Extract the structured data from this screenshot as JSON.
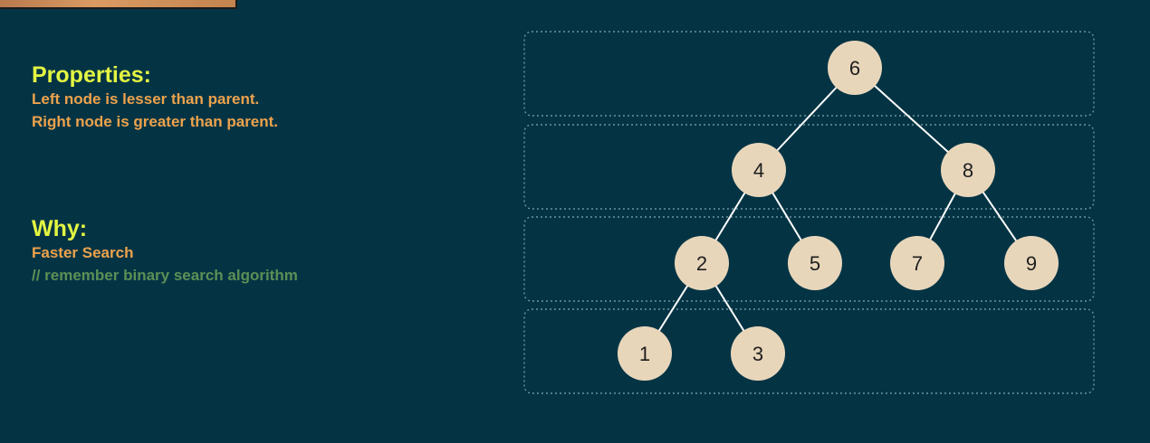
{
  "properties": {
    "heading": "Properties:",
    "lines": [
      "Left node is lesser than parent.",
      "Right node is greater than parent."
    ]
  },
  "why": {
    "heading": "Why:",
    "reason": "Faster Search",
    "comment": "// remember binary search algorithm"
  },
  "tree": {
    "root": "6",
    "nodes": [
      {
        "id": "n6",
        "label": "6",
        "level": 0
      },
      {
        "id": "n4",
        "label": "4",
        "level": 1
      },
      {
        "id": "n8",
        "label": "8",
        "level": 1
      },
      {
        "id": "n2",
        "label": "2",
        "level": 2
      },
      {
        "id": "n5",
        "label": "5",
        "level": 2
      },
      {
        "id": "n7",
        "label": "7",
        "level": 2
      },
      {
        "id": "n9",
        "label": "9",
        "level": 2
      },
      {
        "id": "n1",
        "label": "1",
        "level": 3
      },
      {
        "id": "n3",
        "label": "3",
        "level": 3
      }
    ],
    "edges": [
      [
        "n6",
        "n4"
      ],
      [
        "n6",
        "n8"
      ],
      [
        "n4",
        "n2"
      ],
      [
        "n4",
        "n5"
      ],
      [
        "n8",
        "n7"
      ],
      [
        "n8",
        "n9"
      ],
      [
        "n2",
        "n1"
      ],
      [
        "n2",
        "n3"
      ]
    ],
    "level_count": 4
  },
  "colors": {
    "background": "#043444",
    "heading": "#e3f542",
    "text": "#eda24c",
    "comment": "#5c8f55",
    "node_fill": "#e8d6bb",
    "edge": "#ffffff",
    "level_border": "#6e93a2"
  }
}
